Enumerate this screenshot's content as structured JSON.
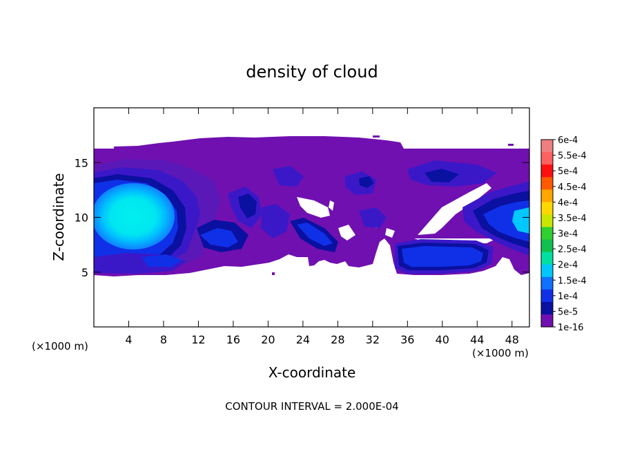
{
  "chart_data": {
    "type": "heatmap",
    "title": "density of cloud",
    "xlabel": "X-coordinate",
    "ylabel": "Z-coordinate",
    "x_unit_label": "(×1000 m)",
    "z_unit_label": "(×1000 m)",
    "xlim": [
      0,
      50
    ],
    "ylim": [
      0,
      20
    ],
    "x_ticks": [
      4,
      8,
      12,
      16,
      20,
      24,
      28,
      32,
      36,
      40,
      44,
      48
    ],
    "y_ticks": [
      5,
      10,
      15
    ],
    "footer": "CONTOUR INTERVAL = 2.000E-04",
    "colorbar": {
      "labels": [
        "6e-4",
        "5.5e-4",
        "5e-4",
        "4.5e-4",
        "4e-4",
        "3.5e-4",
        "3e-4",
        "2.5e-4",
        "2e-4",
        "1.5e-4",
        "1e-4",
        "5e-5",
        "1e-16"
      ],
      "colors": [
        "#f08080",
        "#ff6060",
        "#ff1010",
        "#ff5a00",
        "#ffa500",
        "#ffd700",
        "#c8e600",
        "#30d030",
        "#10c050",
        "#00e0a0",
        "#00c8ff",
        "#1070ff",
        "#1030e8",
        "#0a10a0",
        "#7010b0"
      ]
    },
    "cloud_field": {
      "description_levels": [
        "1e-16",
        "5e-5",
        "1e-4",
        "1.5e-4"
      ],
      "main_top_z": 16.2,
      "main_bottom_z": 4.7,
      "max_region": {
        "x": 4.8,
        "z": 10.1,
        "level": "2e-4"
      }
    }
  }
}
